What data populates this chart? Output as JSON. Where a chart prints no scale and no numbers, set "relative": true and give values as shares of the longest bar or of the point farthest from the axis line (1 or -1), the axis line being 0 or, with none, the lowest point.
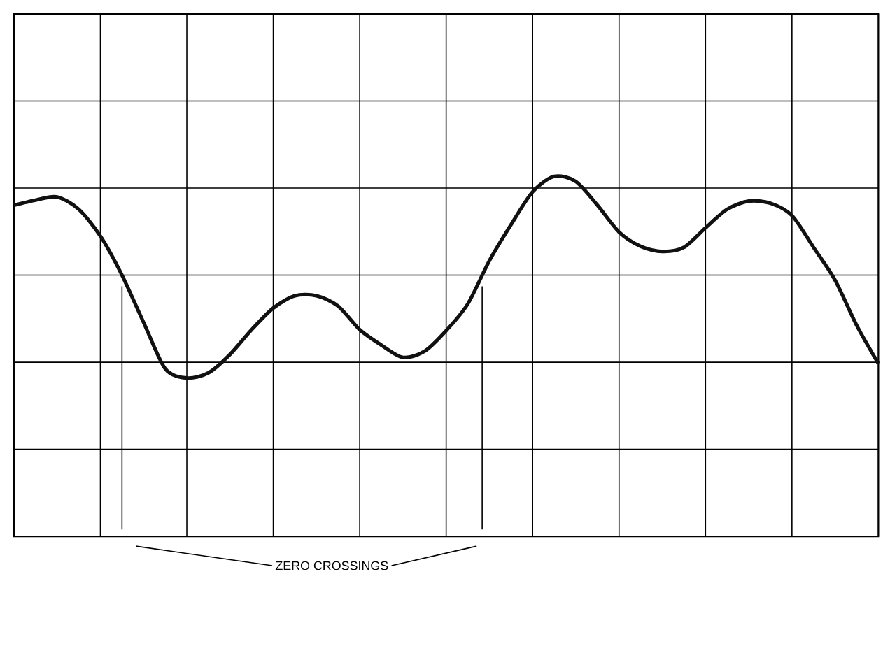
{
  "chart_data": {
    "type": "line",
    "relative": true,
    "grid": true,
    "tick_labels": false,
    "categories": [
      null,
      null,
      null,
      null,
      null,
      null,
      null,
      null,
      null,
      null,
      null,
      null,
      null,
      null,
      null,
      null,
      null,
      null,
      null,
      null,
      null,
      null,
      null,
      null,
      null,
      null,
      null,
      null,
      null,
      null,
      null,
      null,
      null,
      null,
      null,
      null,
      null,
      null,
      null,
      null,
      null
    ],
    "annotations": [
      "ZERO CROSSINGS"
    ],
    "series": [
      {
        "color": "#111111",
        "values": [
          0.68,
          0.73,
          0.76,
          0.64,
          0.38,
          0,
          -0.46,
          -0.91,
          -1,
          -0.95,
          -0.77,
          -0.53,
          -0.32,
          -0.2,
          -0.2,
          -0.3,
          -0.53,
          -0.68,
          -0.8,
          -0.74,
          -0.54,
          -0.28,
          0.14,
          0.49,
          0.81,
          0.96,
          0.91,
          0.68,
          0.42,
          0.28,
          0.23,
          0.27,
          0.46,
          0.64,
          0.72,
          0.7,
          0.58,
          0.27,
          -0.05,
          -0.49,
          -0.86
        ]
      }
    ]
  }
}
